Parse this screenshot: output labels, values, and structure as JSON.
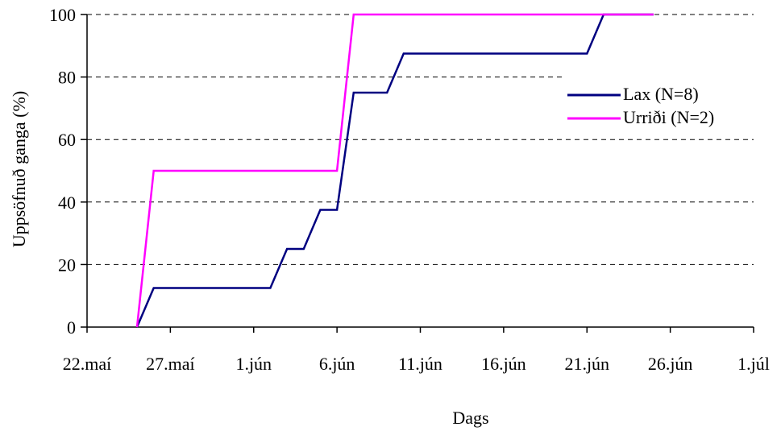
{
  "chart_data": {
    "type": "line",
    "title": "",
    "xlabel": "Dags",
    "ylabel": "Uppsöfnuð ganga (%)",
    "x_ticks": [
      "22.maí",
      "27.maí",
      "1.jún",
      "6.jún",
      "11.jún",
      "16.jún",
      "21.jún",
      "26.jún",
      "1.júl"
    ],
    "y_ticks": [
      "0",
      "20",
      "40",
      "60",
      "80",
      "100"
    ],
    "xlim": [
      "2000-05-22",
      "2000-07-01"
    ],
    "ylim": [
      0,
      100
    ],
    "grid": "horizontal dashed",
    "legend_position": "right",
    "series": [
      {
        "name": "Lax (N=8)",
        "color": "#000080",
        "points": [
          [
            "2000-05-25",
            0
          ],
          [
            "2000-05-26",
            12.5
          ],
          [
            "2000-06-02",
            12.5
          ],
          [
            "2000-06-03",
            25
          ],
          [
            "2000-06-04",
            25
          ],
          [
            "2000-06-05",
            37.5
          ],
          [
            "2000-06-06",
            37.5
          ],
          [
            "2000-06-07",
            75
          ],
          [
            "2000-06-09",
            75
          ],
          [
            "2000-06-10",
            87.5
          ],
          [
            "2000-06-21",
            87.5
          ],
          [
            "2000-06-22",
            100
          ],
          [
            "2000-06-25",
            100
          ]
        ]
      },
      {
        "name": "Urriði (N=2)",
        "color": "#ff00ff",
        "points": [
          [
            "2000-05-25",
            0
          ],
          [
            "2000-05-26",
            50
          ],
          [
            "2000-06-06",
            50
          ],
          [
            "2000-06-07",
            100
          ],
          [
            "2000-06-25",
            100
          ]
        ]
      }
    ]
  }
}
